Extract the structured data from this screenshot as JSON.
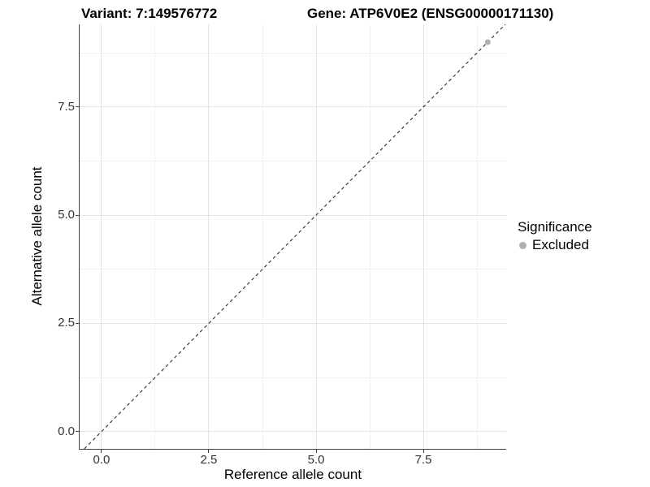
{
  "chart_data": {
    "type": "scatter",
    "title_left": "Variant: 7:149576772",
    "title_right": "Gene: ATP6V0E2 (ENSG00000171130)",
    "xlabel": "Reference allele count",
    "ylabel": "Alternative allele count",
    "xlim": [
      -0.51,
      9.43
    ],
    "ylim": [
      -0.4,
      9.41
    ],
    "x_breaks": [
      0.0,
      2.5,
      5.0,
      7.5
    ],
    "y_breaks": [
      0.0,
      2.5,
      5.0,
      7.5
    ],
    "x_tick_labels": [
      "0.0",
      "2.5",
      "5.0",
      "7.5"
    ],
    "y_tick_labels": [
      "0.0",
      "2.5",
      "5.0",
      "7.5"
    ],
    "x_minor_breaks": [
      1.25,
      3.75,
      6.25,
      8.75
    ],
    "y_minor_breaks": [
      1.25,
      3.75,
      6.25,
      8.75
    ],
    "grid": true,
    "points": [
      {
        "x": 9,
        "y": 9,
        "series": "Excluded"
      }
    ],
    "reference_line": {
      "equation": "y = x",
      "style": "dashed",
      "color": "#1a1a1a"
    },
    "legend": {
      "title": "Significance",
      "position": "right",
      "entries": [
        {
          "label": "Excluded",
          "color": "#b0b0b0"
        }
      ]
    },
    "colors": {
      "point": "#b0b0b0",
      "grid_major": "#e4e4e4",
      "grid_minor": "#f1f1f1",
      "axis_line": "#404040",
      "tick_label": "#333333"
    }
  }
}
